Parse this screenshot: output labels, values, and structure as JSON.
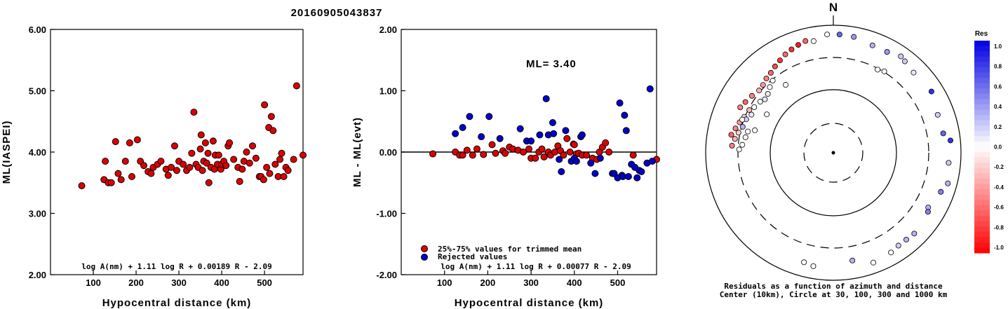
{
  "title": "20160905043837",
  "chart_data": [
    {
      "type": "scatter",
      "ylabel": "ML(IASPEI)",
      "xlabel": "Hypocentral distance (km)",
      "xlim": [
        0,
        590
      ],
      "ylim": [
        2.0,
        6.0
      ],
      "x_ticks": [
        "100",
        "200",
        "300",
        "400",
        "500"
      ],
      "y_ticks": [
        "6.00",
        "5.00",
        "4.00",
        "3.00",
        "2.00"
      ],
      "formula": "log A(nm) + 1.11 log R + 0.00189 R - 2.09",
      "points": [
        [
          73,
          3.45
        ],
        [
          125,
          3.55
        ],
        [
          128,
          3.85
        ],
        [
          135,
          3.5
        ],
        [
          142,
          3.5
        ],
        [
          152,
          4.17
        ],
        [
          158,
          3.65
        ],
        [
          165,
          3.55
        ],
        [
          175,
          3.85
        ],
        [
          185,
          4.15
        ],
        [
          190,
          3.6
        ],
        [
          203,
          4.2
        ],
        [
          210,
          3.85
        ],
        [
          218,
          3.78
        ],
        [
          228,
          3.68
        ],
        [
          235,
          3.65
        ],
        [
          240,
          3.75
        ],
        [
          250,
          3.8
        ],
        [
          258,
          3.85
        ],
        [
          270,
          3.72
        ],
        [
          275,
          3.62
        ],
        [
          282,
          3.75
        ],
        [
          290,
          4.1
        ],
        [
          295,
          3.7
        ],
        [
          300,
          3.85
        ],
        [
          310,
          3.8
        ],
        [
          318,
          3.7
        ],
        [
          325,
          3.75
        ],
        [
          330,
          3.98
        ],
        [
          335,
          4.65
        ],
        [
          340,
          3.8
        ],
        [
          345,
          3.75
        ],
        [
          350,
          4.05
        ],
        [
          352,
          4.28
        ],
        [
          355,
          3.7
        ],
        [
          358,
          3.85
        ],
        [
          362,
          4.15
        ],
        [
          365,
          3.82
        ],
        [
          368,
          3.98
        ],
        [
          370,
          3.5
        ],
        [
          375,
          3.75
        ],
        [
          380,
          4.18
        ],
        [
          383,
          3.72
        ],
        [
          385,
          3.95
        ],
        [
          390,
          3.8
        ],
        [
          393,
          3.95
        ],
        [
          398,
          3.72
        ],
        [
          400,
          3.8
        ],
        [
          405,
          3.85
        ],
        [
          410,
          3.78
        ],
        [
          415,
          4.1
        ],
        [
          418,
          4.15
        ],
        [
          428,
          3.88
        ],
        [
          438,
          3.75
        ],
        [
          442,
          3.52
        ],
        [
          448,
          3.72
        ],
        [
          452,
          3.85
        ],
        [
          458,
          4.0
        ],
        [
          465,
          3.82
        ],
        [
          472,
          4.1
        ],
        [
          480,
          3.9
        ],
        [
          488,
          3.6
        ],
        [
          492,
          3.6
        ],
        [
          498,
          3.55
        ],
        [
          500,
          4.77
        ],
        [
          505,
          3.75
        ],
        [
          510,
          4.4
        ],
        [
          512,
          3.65
        ],
        [
          516,
          4.58
        ],
        [
          520,
          4.35
        ],
        [
          525,
          3.8
        ],
        [
          532,
          3.6
        ],
        [
          536,
          3.88
        ],
        [
          540,
          3.98
        ],
        [
          545,
          3.6
        ],
        [
          550,
          3.75
        ],
        [
          555,
          3.7
        ],
        [
          568,
          3.88
        ],
        [
          575,
          5.08
        ],
        [
          590,
          3.95
        ]
      ]
    },
    {
      "type": "scatter",
      "ylabel": "ML - ML(evt)",
      "xlabel": "Hypocentral distance (km)",
      "xlim": [
        0,
        590
      ],
      "ylim": [
        -2.0,
        2.0
      ],
      "x_ticks": [
        "100",
        "200",
        "300",
        "400",
        "500"
      ],
      "y_ticks": [
        "2.00",
        "1.00",
        "0.00",
        "-1.00",
        "-2.00"
      ],
      "ml_label": "ML= 3.40",
      "legend": [
        "25%-75% values for trimmed mean",
        "Rejected values"
      ],
      "formula": "log A(nm) + 1.11 log R + 0.00077 R - 2.09",
      "series": [
        {
          "name": "25%-75% values for trimmed mean",
          "color": "#dd0000",
          "points": [
            [
              73,
              -0.03
            ],
            [
              125,
              0.0
            ],
            [
              135,
              -0.05
            ],
            [
              142,
              -0.05
            ],
            [
              152,
              0.03
            ],
            [
              165,
              -0.05
            ],
            [
              175,
              0.05
            ],
            [
              190,
              -0.04
            ],
            [
              210,
              0.12
            ],
            [
              218,
              -0.02
            ],
            [
              235,
              0.02
            ],
            [
              240,
              -0.02
            ],
            [
              250,
              0.08
            ],
            [
              258,
              0.05
            ],
            [
              270,
              0.03
            ],
            [
              282,
              0.0
            ],
            [
              295,
              0.05
            ],
            [
              300,
              -0.1
            ],
            [
              310,
              -0.1
            ],
            [
              318,
              0.0
            ],
            [
              325,
              0.05
            ],
            [
              330,
              -0.08
            ],
            [
              340,
              0.0
            ],
            [
              345,
              -0.05
            ],
            [
              355,
              0.0
            ],
            [
              362,
              0.1
            ],
            [
              368,
              0.02
            ],
            [
              375,
              -0.05
            ],
            [
              383,
              0.22
            ],
            [
              390,
              0.0
            ],
            [
              398,
              0.13
            ],
            [
              400,
              0.12
            ],
            [
              405,
              -0.03
            ],
            [
              410,
              -0.02
            ],
            [
              418,
              -0.05
            ],
            [
              428,
              -0.05
            ],
            [
              442,
              -0.1
            ],
            [
              452,
              -0.12
            ],
            [
              458,
              0.0
            ],
            [
              465,
              0.08
            ],
            [
              472,
              0.15
            ],
            [
              480,
              0.0
            ],
            [
              536,
              -0.05
            ],
            [
              590,
              -0.12
            ]
          ]
        },
        {
          "name": "Rejected values",
          "color": "#0000cc",
          "points": [
            [
              125,
              0.3
            ],
            [
              142,
              0.4
            ],
            [
              158,
              0.58
            ],
            [
              185,
              0.25
            ],
            [
              203,
              0.58
            ],
            [
              228,
              0.22
            ],
            [
              275,
              0.38
            ],
            [
              290,
              0.18
            ],
            [
              300,
              0.18
            ],
            [
              320,
              0.28
            ],
            [
              335,
              0.87
            ],
            [
              340,
              0.28
            ],
            [
              350,
              0.48
            ],
            [
              352,
              0.3
            ],
            [
              365,
              -0.12
            ],
            [
              370,
              -0.32
            ],
            [
              380,
              0.35
            ],
            [
              393,
              -0.15
            ],
            [
              400,
              -0.1
            ],
            [
              405,
              -0.15
            ],
            [
              415,
              0.25
            ],
            [
              418,
              0.28
            ],
            [
              438,
              -0.18
            ],
            [
              448,
              -0.35
            ],
            [
              460,
              -0.1
            ],
            [
              488,
              -0.35
            ],
            [
              492,
              -0.35
            ],
            [
              500,
              -0.42
            ],
            [
              505,
              0.8
            ],
            [
              510,
              -0.38
            ],
            [
              512,
              -0.4
            ],
            [
              516,
              0.6
            ],
            [
              520,
              0.35
            ],
            [
              525,
              -0.4
            ],
            [
              532,
              -0.2
            ],
            [
              540,
              -0.25
            ],
            [
              545,
              -0.42
            ],
            [
              550,
              -0.3
            ],
            [
              555,
              -0.32
            ],
            [
              568,
              -0.18
            ],
            [
              575,
              1.03
            ],
            [
              580,
              -0.15
            ]
          ]
        }
      ]
    },
    {
      "type": "polar-scatter",
      "north_label": "N",
      "caption_line1": "Residuals as a function of azimuth and distance",
      "caption_line2": "Center (10km), Circle at 30, 100, 300 and 1000 km",
      "colorbar_title": "Res",
      "colorbar_ticks": [
        "1.0",
        "0.8",
        "0.6",
        "0.4",
        "0.2",
        "0.0",
        "-0.2",
        "-0.4",
        "-0.6",
        "-0.8",
        "-1.0"
      ],
      "rings_km": [
        30,
        100,
        300,
        1000
      ],
      "note": "points listed as [azimuth_deg, distance_km, residual]",
      "points": [
        [
          305,
          360,
          -0.5
        ],
        [
          300,
          390,
          -0.6
        ],
        [
          296,
          420,
          -0.5
        ],
        [
          310,
          330,
          -0.3
        ],
        [
          314,
          340,
          -0.4
        ],
        [
          318,
          370,
          -0.5
        ],
        [
          322,
          390,
          -0.6
        ],
        [
          326,
          430,
          -0.7
        ],
        [
          330,
          470,
          -0.8
        ],
        [
          334,
          520,
          -0.6
        ],
        [
          338,
          560,
          -0.8
        ],
        [
          342,
          600,
          -0.9
        ],
        [
          346,
          640,
          -0.6
        ],
        [
          297,
          300,
          -0.3
        ],
        [
          292,
          320,
          -0.2
        ],
        [
          288,
          350,
          -0.4
        ],
        [
          284,
          380,
          -0.5
        ],
        [
          280,
          420,
          -0.6
        ],
        [
          300,
          270,
          0.0
        ],
        [
          305,
          250,
          0.0
        ],
        [
          308,
          230,
          0.1
        ],
        [
          312,
          240,
          -0.1
        ],
        [
          316,
          270,
          0.0
        ],
        [
          320,
          300,
          0.0
        ],
        [
          295,
          260,
          0.1
        ],
        [
          291,
          290,
          0.2
        ],
        [
          286,
          300,
          0.3
        ],
        [
          290,
          330,
          0.0
        ],
        [
          282,
          330,
          -0.2
        ],
        [
          278,
          360,
          -0.3
        ],
        [
          274,
          390,
          -0.5
        ],
        [
          280,
          250,
          0.0
        ],
        [
          275,
          270,
          0.0
        ],
        [
          272,
          300,
          0.0
        ],
        [
          284,
          240,
          0.0
        ],
        [
          325,
          200,
          0.0
        ],
        [
          300,
          160,
          0.0
        ],
        [
          286,
          190,
          0.0
        ],
        [
          350,
          600,
          0.0
        ],
        [
          357,
          720,
          0.0
        ],
        [
          3,
          720,
          0.6
        ],
        [
          10,
          700,
          0.4
        ],
        [
          20,
          620,
          0.3
        ],
        [
          28,
          620,
          0.4
        ],
        [
          35,
          700,
          0.2
        ],
        [
          38,
          660,
          0.2
        ],
        [
          45,
          600,
          0.1
        ],
        [
          58,
          650,
          0.8
        ],
        [
          70,
          550,
          0.2
        ],
        [
          80,
          560,
          0.6
        ],
        [
          84,
          700,
          0.8
        ],
        [
          95,
          650,
          0.2
        ],
        [
          105,
          720,
          0.3
        ],
        [
          110,
          620,
          0.5
        ],
        [
          120,
          520,
          0.3
        ],
        [
          122,
          560,
          0.5
        ],
        [
          135,
          620,
          0.3
        ],
        [
          140,
          600,
          0.3
        ],
        [
          145,
          600,
          0.2
        ],
        [
          150,
          640,
          0.0
        ],
        [
          160,
          680,
          0.0
        ],
        [
          195,
          600,
          0.0
        ],
        [
          190,
          640,
          0.0
        ],
        [
          28,
          300,
          0.0
        ],
        [
          32,
          320,
          0.0
        ],
        [
          170,
          520,
          0.3
        ]
      ]
    }
  ]
}
